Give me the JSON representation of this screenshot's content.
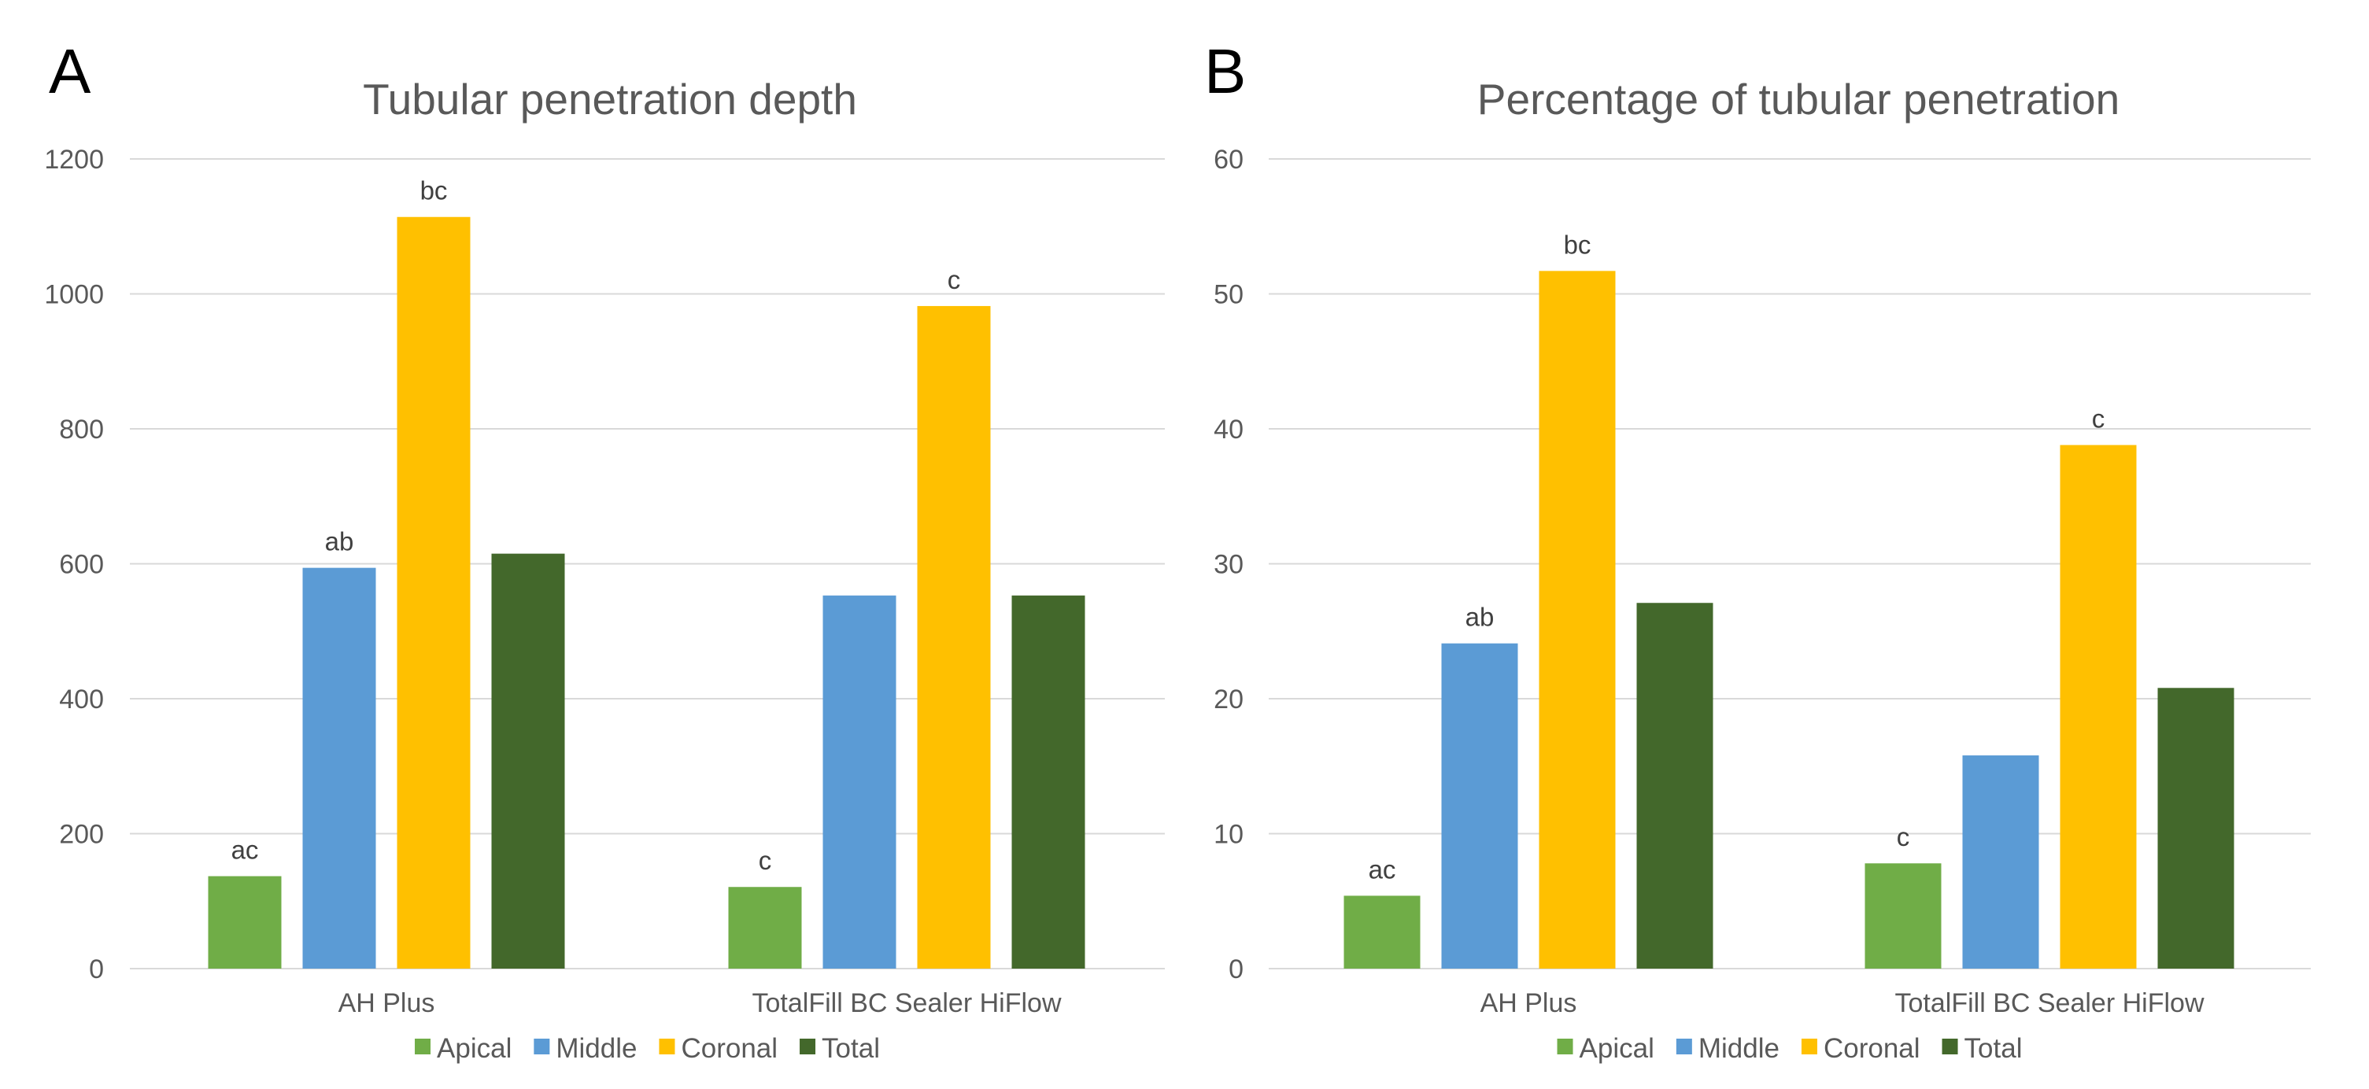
{
  "chart_data": [
    {
      "type": "bar",
      "panel": "A",
      "title": "Tubular penetration depth",
      "xlabel": "",
      "ylabel": "",
      "ylim": [
        0,
        1200
      ],
      "yticks": [
        0,
        200,
        400,
        600,
        800,
        1000,
        1200
      ],
      "categories": [
        "AH Plus",
        "TotalFill BC Sealer HiFlow"
      ],
      "series": [
        {
          "name": "Apical",
          "color": "#70ad47",
          "values": [
            137,
            121
          ],
          "labels": [
            "ac",
            "c"
          ]
        },
        {
          "name": "Middle",
          "color": "#5b9bd5",
          "values": [
            594,
            553
          ],
          "labels": [
            "ab",
            ""
          ]
        },
        {
          "name": "Coronal",
          "color": "#ffc000",
          "values": [
            1114,
            982
          ],
          "labels": [
            "bc",
            "c"
          ]
        },
        {
          "name": "Total",
          "color": "#43682b",
          "values": [
            615,
            553
          ],
          "labels": [
            "",
            ""
          ]
        }
      ],
      "legend": "bottom",
      "grid": true
    },
    {
      "type": "bar",
      "panel": "B",
      "title": "Percentage of tubular penetration",
      "xlabel": "",
      "ylabel": "",
      "ylim": [
        0,
        60
      ],
      "yticks": [
        0,
        10,
        20,
        30,
        40,
        50,
        60
      ],
      "categories": [
        "AH Plus",
        "TotalFill BC Sealer HiFlow"
      ],
      "series": [
        {
          "name": "Apical",
          "color": "#70ad47",
          "values": [
            5.4,
            7.8
          ],
          "labels": [
            "ac",
            "c"
          ]
        },
        {
          "name": "Middle",
          "color": "#5b9bd5",
          "values": [
            24.1,
            15.8
          ],
          "labels": [
            "ab",
            ""
          ]
        },
        {
          "name": "Coronal",
          "color": "#ffc000",
          "values": [
            51.7,
            38.8
          ],
          "labels": [
            "bc",
            "c"
          ]
        },
        {
          "name": "Total",
          "color": "#43682b",
          "values": [
            27.1,
            20.8
          ],
          "labels": [
            "",
            ""
          ]
        }
      ],
      "legend": "bottom",
      "grid": true
    }
  ]
}
